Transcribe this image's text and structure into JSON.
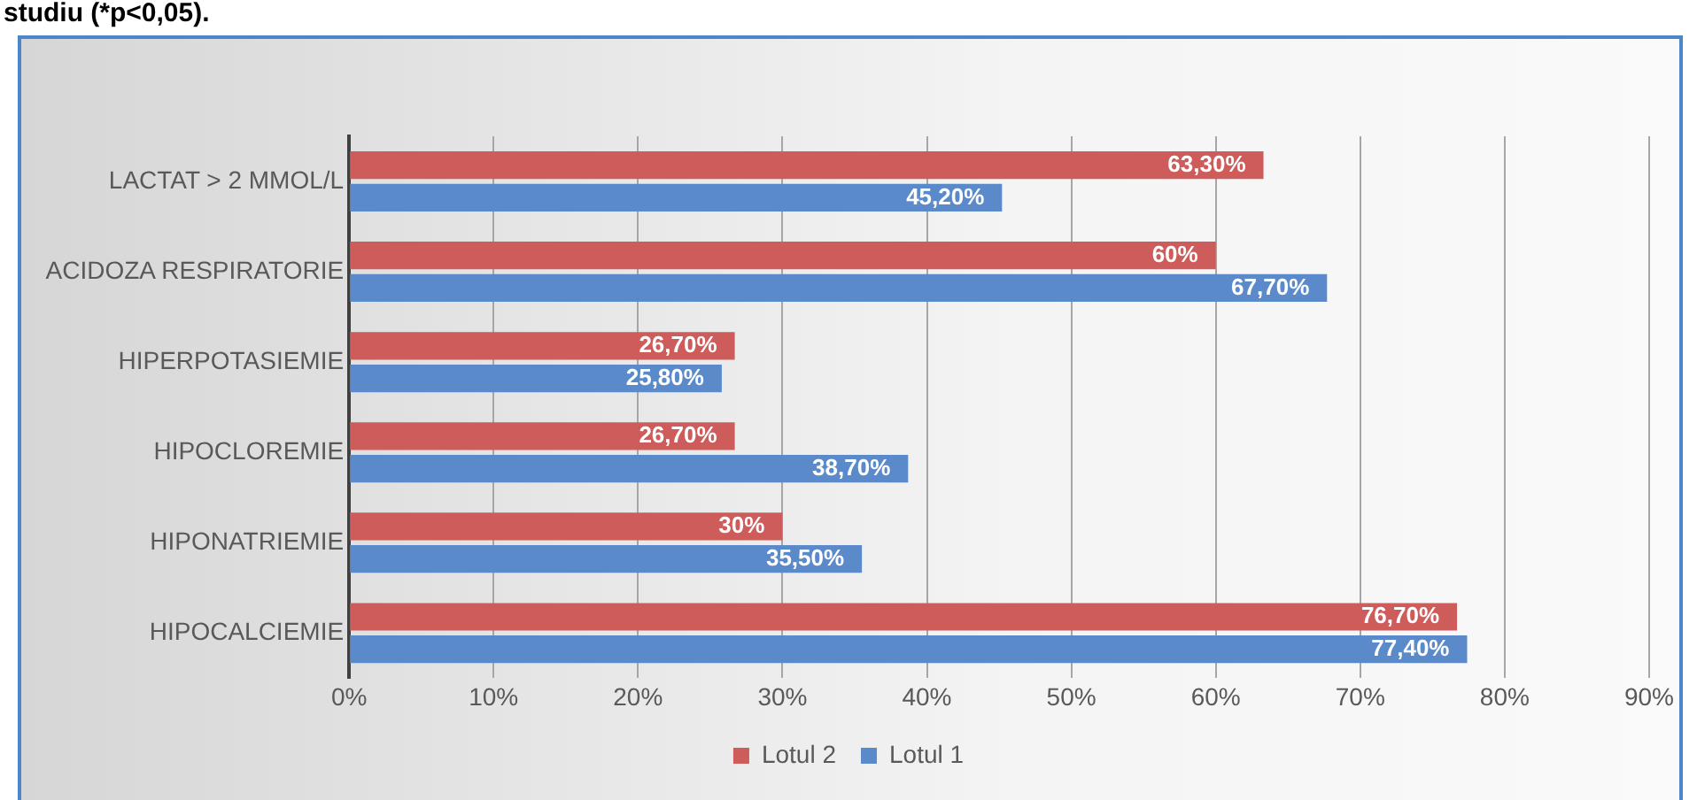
{
  "chart_data": {
    "type": "bar",
    "orientation": "horizontal",
    "annotations": [
      "studiu (*p<0,05)."
    ],
    "categories": [
      "LACTAT > 2 MMOL/L",
      "ACIDOZA RESPIRATORIE",
      "HIPERPOTASIEMIE",
      "HIPOCLOREMIE",
      "HIPONATRIEMIE",
      "HIPOCALCIEMIE"
    ],
    "series": [
      {
        "name": "Lotul 2",
        "color": "#cd5c5a",
        "values": [
          63.3,
          60,
          26.7,
          26.7,
          30,
          76.7
        ],
        "value_labels": [
          "63,30%",
          "60%",
          "26,70%",
          "26,70%",
          "30%",
          "76,70%"
        ]
      },
      {
        "name": "Lotul 1",
        "color": "#5b8acb",
        "values": [
          45.2,
          67.7,
          25.8,
          38.7,
          35.5,
          77.4
        ],
        "value_labels": [
          "45,20%",
          "67,70%",
          "25,80%",
          "38,70%",
          "35,50%",
          "77,40%"
        ]
      }
    ],
    "xlim": [
      0,
      90
    ],
    "xticks": [
      {
        "value": 0,
        "label": "0%"
      },
      {
        "value": 10,
        "label": "10%"
      },
      {
        "value": 20,
        "label": "20%"
      },
      {
        "value": 30,
        "label": "30%"
      },
      {
        "value": 40,
        "label": "40%"
      },
      {
        "value": 50,
        "label": "50%"
      },
      {
        "value": 60,
        "label": "60%"
      },
      {
        "value": 70,
        "label": "70%"
      },
      {
        "value": 80,
        "label": "80%"
      },
      {
        "value": 90,
        "label": "90%"
      }
    ],
    "grid": "x",
    "legend": "bottom"
  }
}
